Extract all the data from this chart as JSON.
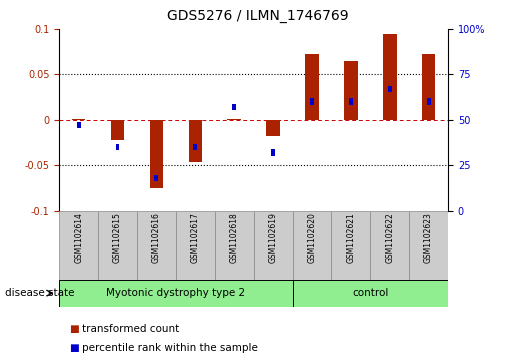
{
  "title": "GDS5276 / ILMN_1746769",
  "samples": [
    "GSM1102614",
    "GSM1102615",
    "GSM1102616",
    "GSM1102617",
    "GSM1102618",
    "GSM1102619",
    "GSM1102620",
    "GSM1102621",
    "GSM1102622",
    "GSM1102623"
  ],
  "red_values": [
    0.001,
    -0.022,
    -0.075,
    -0.046,
    0.001,
    -0.018,
    0.073,
    0.065,
    0.095,
    0.073
  ],
  "blue_values_raw": [
    47,
    35,
    18,
    35,
    57,
    32,
    60,
    60,
    67,
    60
  ],
  "ylim": [
    -0.1,
    0.1
  ],
  "yticks_red": [
    -0.1,
    -0.05,
    0.0,
    0.05,
    0.1
  ],
  "yticks_blue_labels": [
    "0",
    "25",
    "50",
    "75",
    "100%"
  ],
  "disease_groups": [
    {
      "label": "Myotonic dystrophy type 2",
      "n": 6,
      "color": "#90EE90"
    },
    {
      "label": "control",
      "n": 4,
      "color": "#90EE90"
    }
  ],
  "red_color": "#AA2200",
  "blue_color": "#0000CC",
  "dotted_line_color": "#000000",
  "zero_line_color": "#CC0000",
  "label_red": "transformed count",
  "label_blue": "percentile rank within the sample",
  "bg_color": "#FFFFFF",
  "sample_box_color": "#CCCCCC",
  "disease_label": "disease state"
}
